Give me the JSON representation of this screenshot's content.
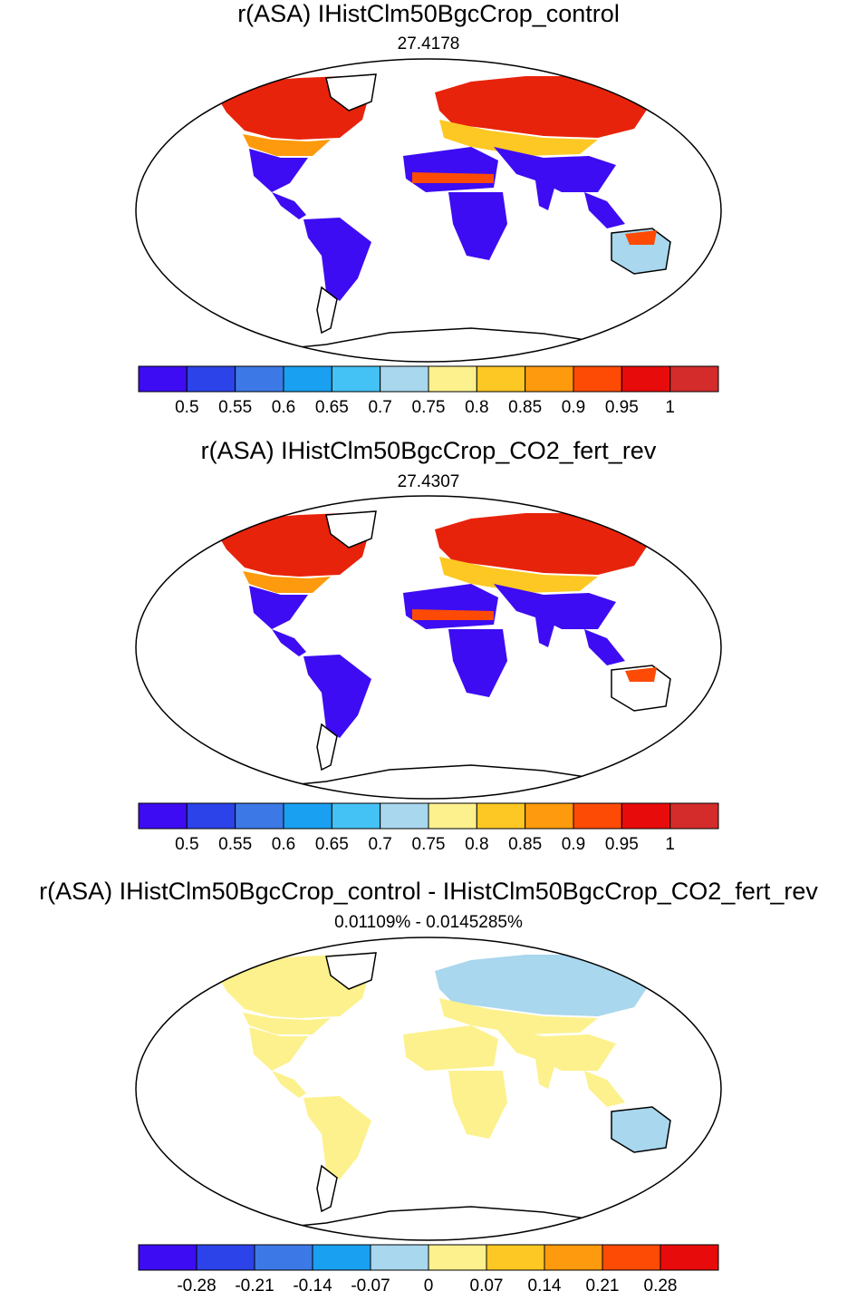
{
  "palette": [
    "#3d0cf2",
    "#2b43e8",
    "#3d79e6",
    "#1aa0f0",
    "#45c2f5",
    "#a8d7ee",
    "#fdf18d",
    "#fdc823",
    "#fd9a0d",
    "#fd4a04",
    "#e80b0b",
    "#d42b2b"
  ],
  "panels": [
    {
      "title": "r(ASA) IHistClm50BgcCrop_control",
      "subtitle": "27.4178",
      "colorbar": {
        "labels": [
          "0.5",
          "0.55",
          "0.6",
          "0.65",
          "0.7",
          "0.75",
          "0.8",
          "0.85",
          "0.9",
          "0.95",
          "1"
        ]
      }
    },
    {
      "title": "r(ASA) IHistClm50BgcCrop_CO2_fert_rev",
      "subtitle": "27.4307",
      "colorbar": {
        "labels": [
          "0.5",
          "0.55",
          "0.6",
          "0.65",
          "0.7",
          "0.75",
          "0.8",
          "0.85",
          "0.9",
          "0.95",
          "1"
        ]
      }
    },
    {
      "title": "r(ASA) IHistClm50BgcCrop_control - IHistClm50BgcCrop_CO2_fert_rev",
      "subtitle": "0.01109% - 0.0145285%",
      "colorbar": {
        "labels": [
          "-0.28",
          "-0.21",
          "-0.14",
          "-0.07",
          "0",
          "0.07",
          "0.14",
          "0.21",
          "0.28"
        ]
      }
    }
  ]
}
